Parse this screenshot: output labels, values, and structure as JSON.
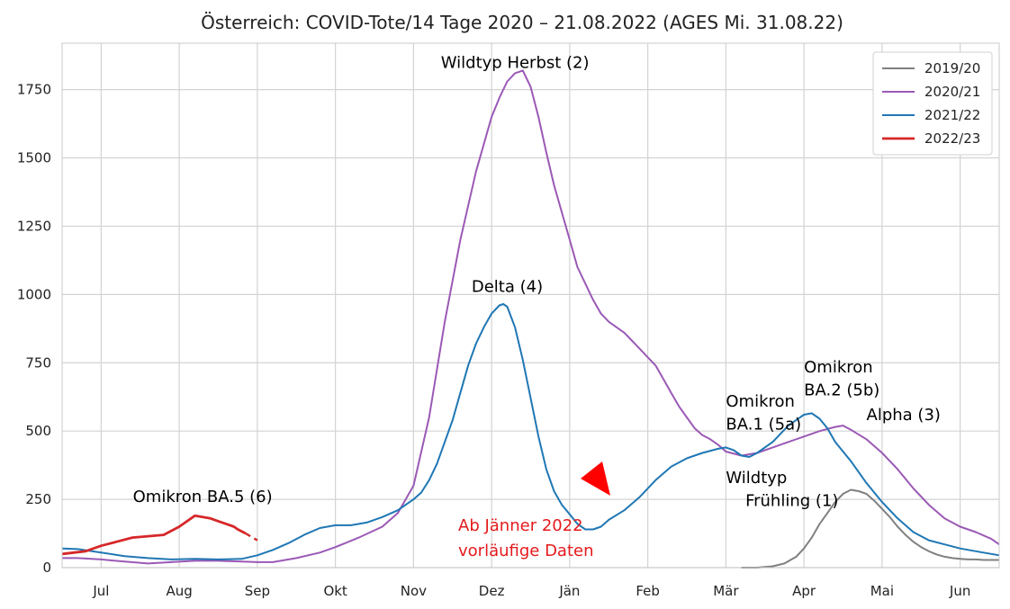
{
  "chart_data": {
    "type": "line",
    "title": "Österreich: COVID-Tote/14 Tage 2020 – 21.08.2022 (AGES Mi. 31.08.22)",
    "xlabel": "",
    "ylabel": "",
    "x_ticks": [
      "Jul",
      "Aug",
      "Sep",
      "Okt",
      "Nov",
      "Dez",
      "Jän",
      "Feb",
      "Mär",
      "Apr",
      "Mai",
      "Jun"
    ],
    "y_ticks": [
      0,
      250,
      500,
      750,
      1000,
      1250,
      1500,
      1750
    ],
    "ylim": [
      0,
      1920
    ],
    "grid": true,
    "legend_position": "top-right",
    "x_unit": "months since 1 July",
    "series": [
      {
        "name": "2019/20",
        "color": "#808080",
        "points": [
          [
            8.2,
            0
          ],
          [
            8.4,
            0
          ],
          [
            8.6,
            5
          ],
          [
            8.75,
            15
          ],
          [
            8.9,
            40
          ],
          [
            9.0,
            70
          ],
          [
            9.1,
            110
          ],
          [
            9.2,
            160
          ],
          [
            9.3,
            200
          ],
          [
            9.4,
            240
          ],
          [
            9.5,
            270
          ],
          [
            9.6,
            285
          ],
          [
            9.7,
            280
          ],
          [
            9.8,
            270
          ],
          [
            9.9,
            245
          ],
          [
            10.0,
            215
          ],
          [
            10.1,
            185
          ],
          [
            10.2,
            150
          ],
          [
            10.3,
            120
          ],
          [
            10.4,
            95
          ],
          [
            10.5,
            75
          ],
          [
            10.6,
            60
          ],
          [
            10.7,
            48
          ],
          [
            10.8,
            40
          ],
          [
            10.9,
            35
          ],
          [
            11.0,
            32
          ],
          [
            11.1,
            30
          ],
          [
            11.2,
            30
          ],
          [
            11.3,
            28
          ],
          [
            11.5,
            28
          ]
        ]
      },
      {
        "name": "2020/21",
        "color": "#9b59b6",
        "points": [
          [
            -0.5,
            35
          ],
          [
            -0.3,
            35
          ],
          [
            0,
            30
          ],
          [
            0.3,
            22
          ],
          [
            0.6,
            15
          ],
          [
            0.9,
            20
          ],
          [
            1.2,
            25
          ],
          [
            1.5,
            25
          ],
          [
            1.8,
            22
          ],
          [
            2.0,
            20
          ],
          [
            2.2,
            20
          ],
          [
            2.5,
            35
          ],
          [
            2.8,
            55
          ],
          [
            3.0,
            75
          ],
          [
            3.3,
            110
          ],
          [
            3.6,
            150
          ],
          [
            3.8,
            200
          ],
          [
            4.0,
            300
          ],
          [
            4.2,
            550
          ],
          [
            4.4,
            900
          ],
          [
            4.6,
            1200
          ],
          [
            4.8,
            1450
          ],
          [
            5.0,
            1650
          ],
          [
            5.1,
            1720
          ],
          [
            5.2,
            1780
          ],
          [
            5.3,
            1810
          ],
          [
            5.4,
            1820
          ],
          [
            5.5,
            1760
          ],
          [
            5.6,
            1650
          ],
          [
            5.7,
            1520
          ],
          [
            5.8,
            1400
          ],
          [
            5.9,
            1300
          ],
          [
            6.0,
            1200
          ],
          [
            6.1,
            1100
          ],
          [
            6.2,
            1040
          ],
          [
            6.3,
            980
          ],
          [
            6.4,
            930
          ],
          [
            6.5,
            900
          ],
          [
            6.6,
            880
          ],
          [
            6.7,
            860
          ],
          [
            6.8,
            830
          ],
          [
            6.9,
            800
          ],
          [
            7.0,
            770
          ],
          [
            7.1,
            740
          ],
          [
            7.2,
            690
          ],
          [
            7.3,
            640
          ],
          [
            7.4,
            590
          ],
          [
            7.5,
            550
          ],
          [
            7.6,
            510
          ],
          [
            7.7,
            485
          ],
          [
            7.8,
            470
          ],
          [
            7.9,
            450
          ],
          [
            8.0,
            425
          ],
          [
            8.2,
            410
          ],
          [
            8.4,
            420
          ],
          [
            8.6,
            440
          ],
          [
            8.8,
            460
          ],
          [
            9.0,
            480
          ],
          [
            9.2,
            500
          ],
          [
            9.4,
            515
          ],
          [
            9.5,
            520
          ],
          [
            9.6,
            505
          ],
          [
            9.8,
            470
          ],
          [
            10.0,
            420
          ],
          [
            10.2,
            360
          ],
          [
            10.4,
            290
          ],
          [
            10.6,
            230
          ],
          [
            10.8,
            180
          ],
          [
            11.0,
            150
          ],
          [
            11.2,
            130
          ],
          [
            11.4,
            105
          ],
          [
            11.5,
            85
          ]
        ]
      },
      {
        "name": "2021/22",
        "color": "#1f77b4",
        "points": [
          [
            -0.5,
            70
          ],
          [
            -0.3,
            68
          ],
          [
            0,
            55
          ],
          [
            0.3,
            42
          ],
          [
            0.6,
            35
          ],
          [
            0.9,
            30
          ],
          [
            1.2,
            32
          ],
          [
            1.5,
            30
          ],
          [
            1.8,
            32
          ],
          [
            2.0,
            45
          ],
          [
            2.2,
            65
          ],
          [
            2.4,
            90
          ],
          [
            2.6,
            120
          ],
          [
            2.8,
            145
          ],
          [
            3.0,
            155
          ],
          [
            3.2,
            155
          ],
          [
            3.4,
            165
          ],
          [
            3.6,
            185
          ],
          [
            3.8,
            210
          ],
          [
            4.0,
            250
          ],
          [
            4.1,
            275
          ],
          [
            4.2,
            320
          ],
          [
            4.3,
            380
          ],
          [
            4.4,
            460
          ],
          [
            4.5,
            540
          ],
          [
            4.6,
            640
          ],
          [
            4.7,
            740
          ],
          [
            4.8,
            820
          ],
          [
            4.9,
            880
          ],
          [
            5.0,
            930
          ],
          [
            5.1,
            960
          ],
          [
            5.15,
            965
          ],
          [
            5.2,
            955
          ],
          [
            5.3,
            880
          ],
          [
            5.4,
            760
          ],
          [
            5.5,
            620
          ],
          [
            5.6,
            480
          ],
          [
            5.7,
            360
          ],
          [
            5.8,
            280
          ],
          [
            5.9,
            230
          ],
          [
            6.0,
            195
          ],
          [
            6.1,
            160
          ],
          [
            6.2,
            140
          ],
          [
            6.3,
            140
          ],
          [
            6.4,
            150
          ],
          [
            6.5,
            175
          ],
          [
            6.7,
            210
          ],
          [
            6.9,
            260
          ],
          [
            7.1,
            320
          ],
          [
            7.3,
            370
          ],
          [
            7.5,
            400
          ],
          [
            7.7,
            420
          ],
          [
            7.9,
            435
          ],
          [
            8.0,
            440
          ],
          [
            8.1,
            430
          ],
          [
            8.2,
            410
          ],
          [
            8.3,
            405
          ],
          [
            8.4,
            420
          ],
          [
            8.6,
            460
          ],
          [
            8.8,
            520
          ],
          [
            9.0,
            560
          ],
          [
            9.1,
            565
          ],
          [
            9.2,
            545
          ],
          [
            9.3,
            510
          ],
          [
            9.4,
            460
          ],
          [
            9.6,
            390
          ],
          [
            9.8,
            310
          ],
          [
            10.0,
            240
          ],
          [
            10.2,
            180
          ],
          [
            10.4,
            130
          ],
          [
            10.6,
            100
          ],
          [
            10.8,
            85
          ],
          [
            11.0,
            70
          ],
          [
            11.2,
            60
          ],
          [
            11.4,
            50
          ],
          [
            11.5,
            45
          ]
        ]
      },
      {
        "name": "2022/23",
        "color": "#d62728",
        "points": [
          [
            -0.5,
            50
          ],
          [
            -0.2,
            60
          ],
          [
            0,
            80
          ],
          [
            0.2,
            95
          ],
          [
            0.4,
            110
          ],
          [
            0.6,
            115
          ],
          [
            0.8,
            120
          ],
          [
            1.0,
            150
          ],
          [
            1.1,
            170
          ],
          [
            1.2,
            190
          ],
          [
            1.3,
            185
          ],
          [
            1.4,
            180
          ],
          [
            1.5,
            170
          ],
          [
            1.6,
            160
          ],
          [
            1.7,
            150
          ],
          [
            1.75,
            140
          ],
          [
            1.85,
            125
          ]
        ]
      },
      {
        "name": "",
        "color": "#d62728",
        "dashed": true,
        "points": [
          [
            1.85,
            125
          ],
          [
            2.0,
            100
          ]
        ]
      }
    ],
    "annotations": [
      {
        "text": "Wildtyp Herbst (2)",
        "x": 5.3,
        "y": 1830
      },
      {
        "text": "Delta (4)",
        "x": 5.2,
        "y": 1010
      },
      {
        "text": "Omikron",
        "x": 8.0,
        "y": 590
      },
      {
        "text": "BA.1 (5a)",
        "x": 8.0,
        "y": 505
      },
      {
        "text": "Omikron",
        "x": 9.0,
        "y": 715
      },
      {
        "text": "BA.2 (5b)",
        "x": 9.0,
        "y": 630
      },
      {
        "text": "Alpha (3)",
        "x": 9.8,
        "y": 540
      },
      {
        "text": "Wildtyp",
        "x": 8.0,
        "y": 310
      },
      {
        "text": "Frühling (1)",
        "x": 8.25,
        "y": 225
      },
      {
        "text": "Omikron BA.5 (6)",
        "x": 1.3,
        "y": 240
      }
    ],
    "note_lines": [
      "Ab Jänner 2022",
      "vorläufige Daten"
    ],
    "legend": [
      "2019/20",
      "2020/21",
      "2021/22",
      "2022/23"
    ]
  }
}
